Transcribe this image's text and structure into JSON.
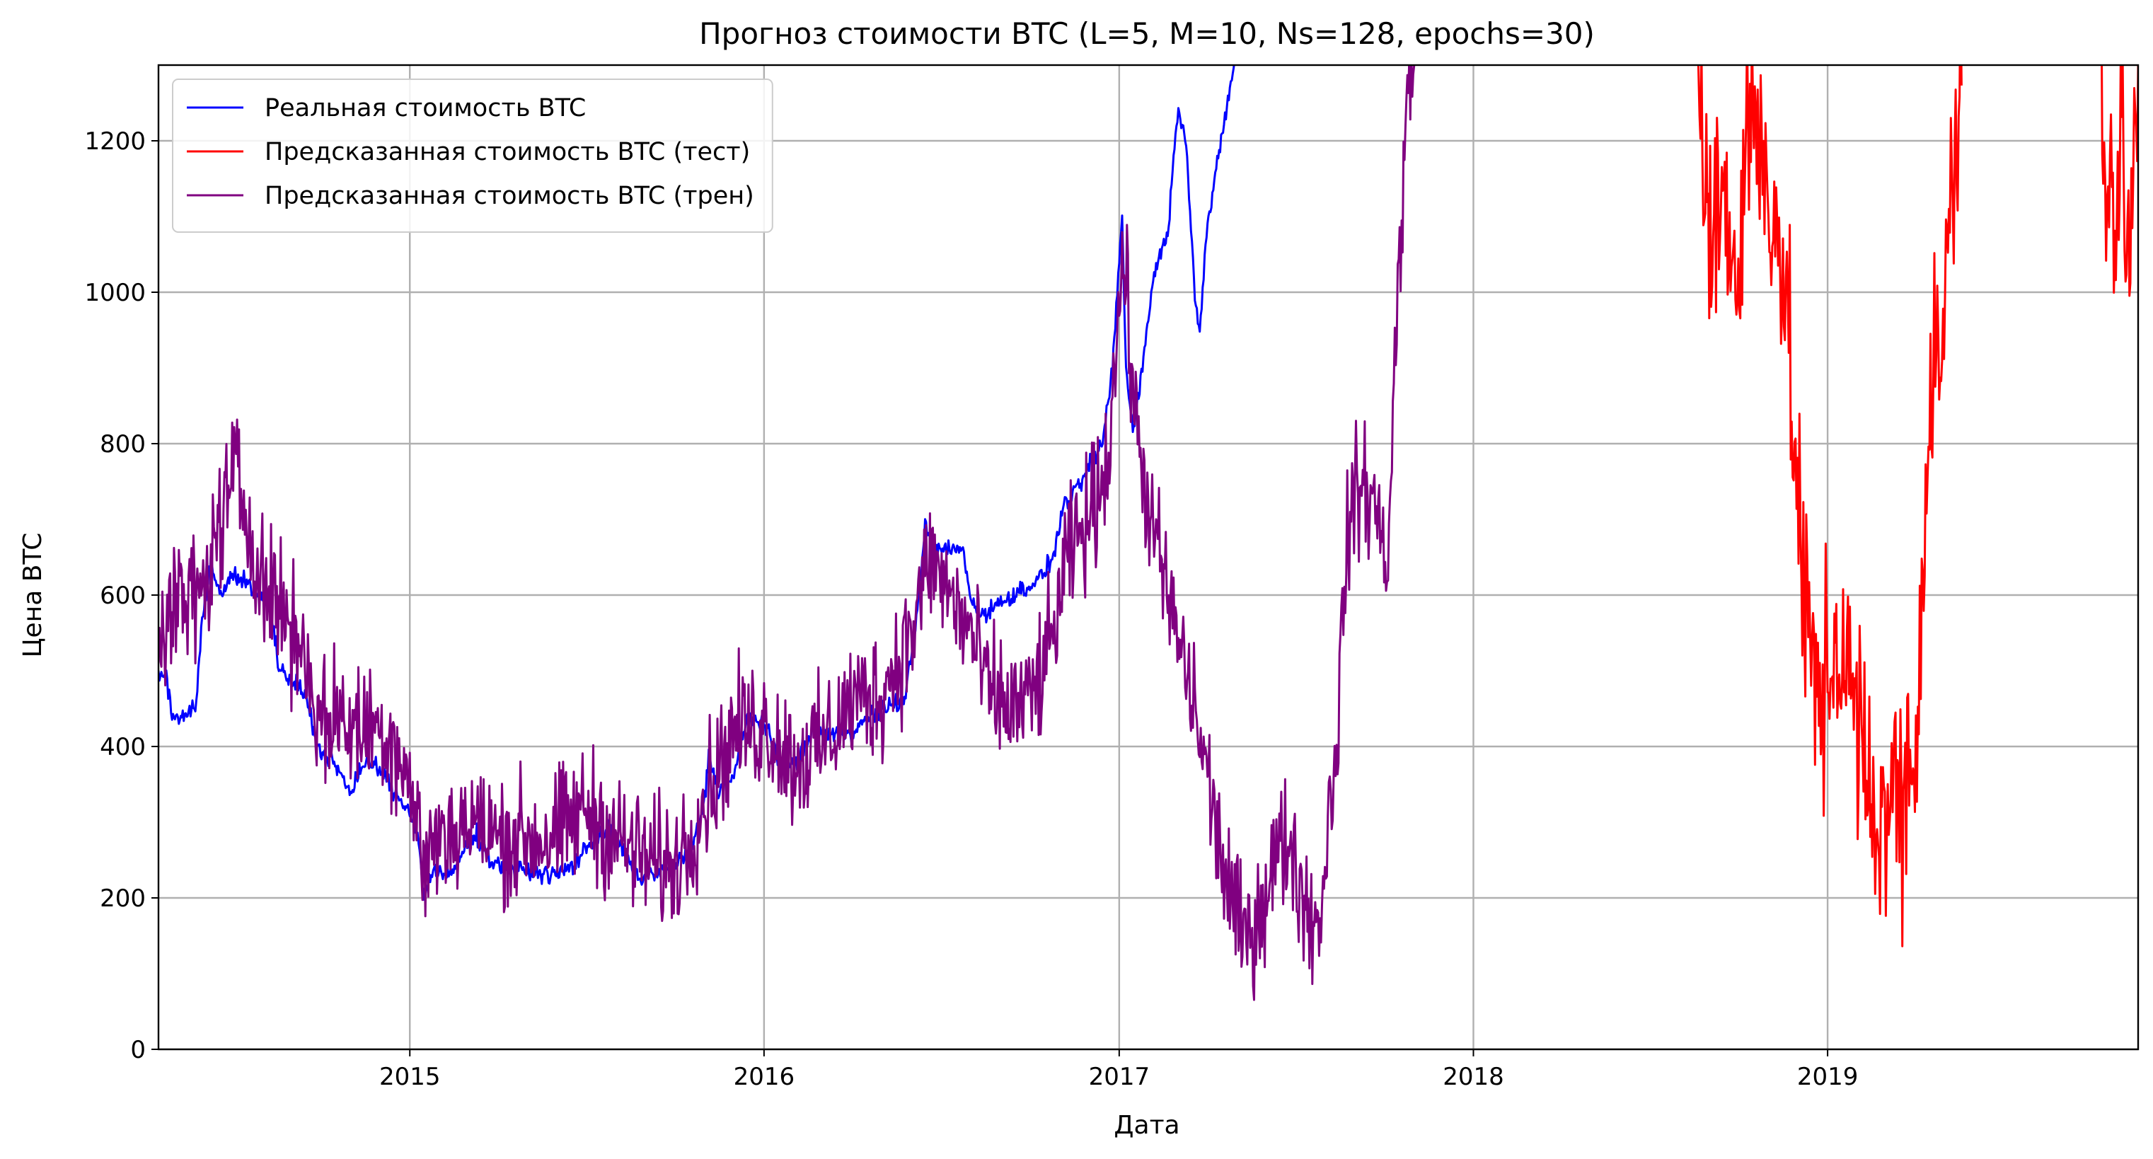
{
  "chart_data": {
    "type": "line",
    "title": "Прогноз стоимости BTC (L=5, M=10, Ns=128, epochs=30)",
    "xlabel": "Дата",
    "ylabel": "Цена BTC",
    "xlim": [
      "2014-04-17",
      "2019-11-17"
    ],
    "ylim": [
      0,
      1300
    ],
    "xticks": [
      {
        "date": "2015-01-01",
        "label": "2015"
      },
      {
        "date": "2016-01-01",
        "label": "2016"
      },
      {
        "date": "2017-01-01",
        "label": "2017"
      },
      {
        "date": "2018-01-01",
        "label": "2018"
      },
      {
        "date": "2019-01-01",
        "label": "2019"
      }
    ],
    "yticks": [
      0,
      200,
      400,
      600,
      800,
      1000,
      1200
    ],
    "grid": true,
    "legend_position": "top-left",
    "series": [
      {
        "name": "Реальная стоимость BTC",
        "color": "#0000ff",
        "jitter": 12,
        "points": [
          [
            "2014-04-17",
            490
          ],
          [
            "2014-04-25",
            500
          ],
          [
            "2014-05-01",
            435
          ],
          [
            "2014-05-15",
            445
          ],
          [
            "2014-05-25",
            450
          ],
          [
            "2014-06-01",
            570
          ],
          [
            "2014-06-10",
            650
          ],
          [
            "2014-06-20",
            600
          ],
          [
            "2014-07-01",
            625
          ],
          [
            "2014-07-15",
            620
          ],
          [
            "2014-07-25",
            600
          ],
          [
            "2014-08-10",
            590
          ],
          [
            "2014-08-20",
            500
          ],
          [
            "2014-09-01",
            490
          ],
          [
            "2014-09-15",
            470
          ],
          [
            "2014-10-01",
            385
          ],
          [
            "2014-10-15",
            380
          ],
          [
            "2014-11-01",
            340
          ],
          [
            "2014-11-15",
            380
          ],
          [
            "2014-12-01",
            370
          ],
          [
            "2014-12-15",
            340
          ],
          [
            "2015-01-01",
            315
          ],
          [
            "2015-01-10",
            280
          ],
          [
            "2015-01-15",
            200
          ],
          [
            "2015-01-25",
            240
          ],
          [
            "2015-02-10",
            225
          ],
          [
            "2015-02-25",
            260
          ],
          [
            "2015-03-10",
            285
          ],
          [
            "2015-03-25",
            250
          ],
          [
            "2015-04-10",
            240
          ],
          [
            "2015-05-01",
            235
          ],
          [
            "2015-06-01",
            230
          ],
          [
            "2015-06-20",
            245
          ],
          [
            "2015-07-10",
            280
          ],
          [
            "2015-07-25",
            290
          ],
          [
            "2015-08-10",
            260
          ],
          [
            "2015-08-25",
            225
          ],
          [
            "2015-09-15",
            235
          ],
          [
            "2015-10-01",
            240
          ],
          [
            "2015-10-20",
            270
          ],
          [
            "2015-11-01",
            330
          ],
          [
            "2015-11-05",
            390
          ],
          [
            "2015-11-15",
            340
          ],
          [
            "2015-12-01",
            360
          ],
          [
            "2015-12-15",
            440
          ],
          [
            "2016-01-01",
            430
          ],
          [
            "2016-01-15",
            385
          ],
          [
            "2016-02-01",
            375
          ],
          [
            "2016-02-20",
            420
          ],
          [
            "2016-03-10",
            415
          ],
          [
            "2016-04-01",
            420
          ],
          [
            "2016-04-20",
            440
          ],
          [
            "2016-05-10",
            455
          ],
          [
            "2016-05-25",
            460
          ],
          [
            "2016-06-05",
            560
          ],
          [
            "2016-06-15",
            690
          ],
          [
            "2016-06-25",
            660
          ],
          [
            "2016-07-10",
            660
          ],
          [
            "2016-07-25",
            660
          ],
          [
            "2016-08-01",
            590
          ],
          [
            "2016-08-15",
            575
          ],
          [
            "2016-09-01",
            590
          ],
          [
            "2016-09-20",
            605
          ],
          [
            "2016-10-10",
            620
          ],
          [
            "2016-10-25",
            650
          ],
          [
            "2016-11-05",
            720
          ],
          [
            "2016-11-20",
            740
          ],
          [
            "2016-12-01",
            770
          ],
          [
            "2016-12-15",
            800
          ],
          [
            "2016-12-25",
            900
          ],
          [
            "2017-01-04",
            1100
          ],
          [
            "2017-01-08",
            900
          ],
          [
            "2017-01-15",
            820
          ],
          [
            "2017-01-25",
            900
          ],
          [
            "2017-02-05",
            1020
          ],
          [
            "2017-02-20",
            1080
          ],
          [
            "2017-03-03",
            1250
          ],
          [
            "2017-03-12",
            1180
          ],
          [
            "2017-03-20",
            1000
          ],
          [
            "2017-03-25",
            950
          ],
          [
            "2017-04-01",
            1080
          ],
          [
            "2017-04-15",
            1190
          ],
          [
            "2017-04-25",
            1270
          ],
          [
            "2017-05-01",
            1310
          ]
        ]
      },
      {
        "name": "Предсказанная стоимость BTC (тест)",
        "color": "#ff0000",
        "jitter": 150,
        "points": [
          [
            "2018-08-20",
            1300
          ],
          [
            "2018-09-01",
            1050
          ],
          [
            "2018-09-15",
            1150
          ],
          [
            "2018-10-01",
            1000
          ],
          [
            "2018-10-10",
            1250
          ],
          [
            "2018-10-20",
            1200
          ],
          [
            "2018-11-01",
            1150
          ],
          [
            "2018-11-15",
            1050
          ],
          [
            "2018-11-25",
            850
          ],
          [
            "2018-12-05",
            650
          ],
          [
            "2018-12-15",
            500
          ],
          [
            "2018-12-25",
            450
          ],
          [
            "2019-01-05",
            520
          ],
          [
            "2019-01-15",
            540
          ],
          [
            "2019-01-25",
            470
          ],
          [
            "2019-02-05",
            400
          ],
          [
            "2019-02-15",
            300
          ],
          [
            "2019-02-25",
            320
          ],
          [
            "2019-03-10",
            330
          ],
          [
            "2019-03-20",
            340
          ],
          [
            "2019-04-01",
            380
          ],
          [
            "2019-04-10",
            700
          ],
          [
            "2019-04-20",
            900
          ],
          [
            "2019-05-01",
            950
          ],
          [
            "2019-05-10",
            1150
          ],
          [
            "2019-05-20",
            1300
          ],
          [
            "2019-10-10",
            1300
          ],
          [
            "2019-10-15",
            1150
          ],
          [
            "2019-10-25",
            1050
          ],
          [
            "2019-11-01",
            1250
          ],
          [
            "2019-11-05",
            1000
          ],
          [
            "2019-11-10",
            1150
          ],
          [
            "2019-11-17",
            1300
          ]
        ]
      },
      {
        "name": "Предсказанная стоимость BTC (трен)",
        "color": "#800080",
        "jitter": 85,
        "points": [
          [
            "2014-04-17",
            560
          ],
          [
            "2014-05-10",
            590
          ],
          [
            "2014-06-01",
            600
          ],
          [
            "2014-06-20",
            700
          ],
          [
            "2014-07-05",
            760
          ],
          [
            "2014-07-20",
            690
          ],
          [
            "2014-08-05",
            610
          ],
          [
            "2014-08-25",
            580
          ],
          [
            "2014-09-15",
            520
          ],
          [
            "2014-10-01",
            430
          ],
          [
            "2014-10-20",
            440
          ],
          [
            "2014-11-10",
            420
          ],
          [
            "2014-12-01",
            430
          ],
          [
            "2014-12-20",
            400
          ],
          [
            "2015-01-01",
            350
          ],
          [
            "2015-01-15",
            250
          ],
          [
            "2015-02-01",
            280
          ],
          [
            "2015-03-01",
            300
          ],
          [
            "2015-04-01",
            280
          ],
          [
            "2015-05-01",
            280
          ],
          [
            "2015-06-01",
            280
          ],
          [
            "2015-07-01",
            320
          ],
          [
            "2015-08-01",
            280
          ],
          [
            "2015-09-01",
            250
          ],
          [
            "2015-10-01",
            240
          ],
          [
            "2015-11-01",
            330
          ],
          [
            "2015-12-01",
            420
          ],
          [
            "2016-01-01",
            430
          ],
          [
            "2016-02-01",
            380
          ],
          [
            "2016-03-01",
            400
          ],
          [
            "2016-04-01",
            460
          ],
          [
            "2016-05-01",
            470
          ],
          [
            "2016-06-01",
            550
          ],
          [
            "2016-06-20",
            650
          ],
          [
            "2016-07-10",
            600
          ],
          [
            "2016-08-01",
            550
          ],
          [
            "2016-08-20",
            470
          ],
          [
            "2016-09-10",
            450
          ],
          [
            "2016-10-01",
            460
          ],
          [
            "2016-10-20",
            520
          ],
          [
            "2016-11-10",
            650
          ],
          [
            "2016-12-01",
            700
          ],
          [
            "2016-12-20",
            780
          ],
          [
            "2017-01-05",
            1050
          ],
          [
            "2017-01-20",
            800
          ],
          [
            "2017-02-10",
            650
          ],
          [
            "2017-03-01",
            550
          ],
          [
            "2017-03-20",
            450
          ],
          [
            "2017-04-10",
            300
          ],
          [
            "2017-04-25",
            200
          ],
          [
            "2017-05-10",
            140
          ],
          [
            "2017-05-25",
            180
          ],
          [
            "2017-06-10",
            250
          ],
          [
            "2017-06-25",
            280
          ],
          [
            "2017-07-10",
            200
          ],
          [
            "2017-07-25",
            160
          ],
          [
            "2017-08-05",
            300
          ],
          [
            "2017-08-15",
            450
          ],
          [
            "2017-08-25",
            700
          ],
          [
            "2017-09-10",
            750
          ],
          [
            "2017-09-25",
            700
          ],
          [
            "2017-10-05",
            650
          ],
          [
            "2017-10-15",
            1000
          ],
          [
            "2017-10-25",
            1250
          ],
          [
            "2017-11-01",
            1300
          ]
        ]
      }
    ]
  }
}
